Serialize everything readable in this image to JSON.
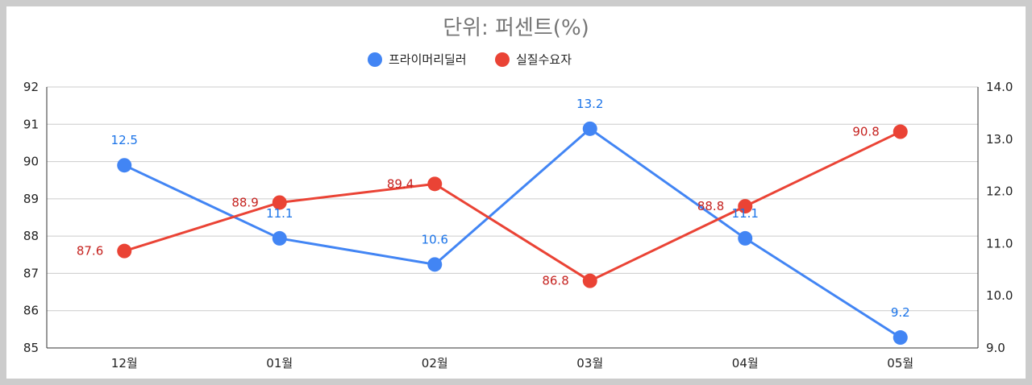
{
  "chart_data": {
    "type": "line",
    "title": "단위: 퍼센트(%)",
    "categories": [
      "12월",
      "01월",
      "02월",
      "03월",
      "04월",
      "05월"
    ],
    "y_left": {
      "min": 85,
      "max": 92,
      "ticks": [
        "85",
        "86",
        "87",
        "88",
        "89",
        "90",
        "91",
        "92"
      ]
    },
    "y_right": {
      "min": 9.0,
      "max": 14.0,
      "ticks": [
        "9.0",
        "10.0",
        "11.0",
        "12.0",
        "13.0",
        "14.0"
      ]
    },
    "grid": true,
    "legend_position": "top",
    "series": [
      {
        "name": "프라이머리딜러",
        "axis": "right",
        "color": "#4285f4",
        "label_color": "#1a73e8",
        "values": [
          12.5,
          11.1,
          10.6,
          13.2,
          11.1,
          9.2
        ],
        "labels": [
          "12.5",
          "11.1",
          "10.6",
          "13.2",
          "11.1",
          "9.2"
        ]
      },
      {
        "name": "실질수요자",
        "axis": "left",
        "color": "#ea4335",
        "label_color": "#c5221f",
        "values": [
          87.6,
          88.9,
          89.4,
          86.8,
          88.8,
          90.8
        ],
        "labels": [
          "87.6",
          "88.9",
          "89.4",
          "86.8",
          "88.8",
          "90.8"
        ]
      }
    ]
  }
}
